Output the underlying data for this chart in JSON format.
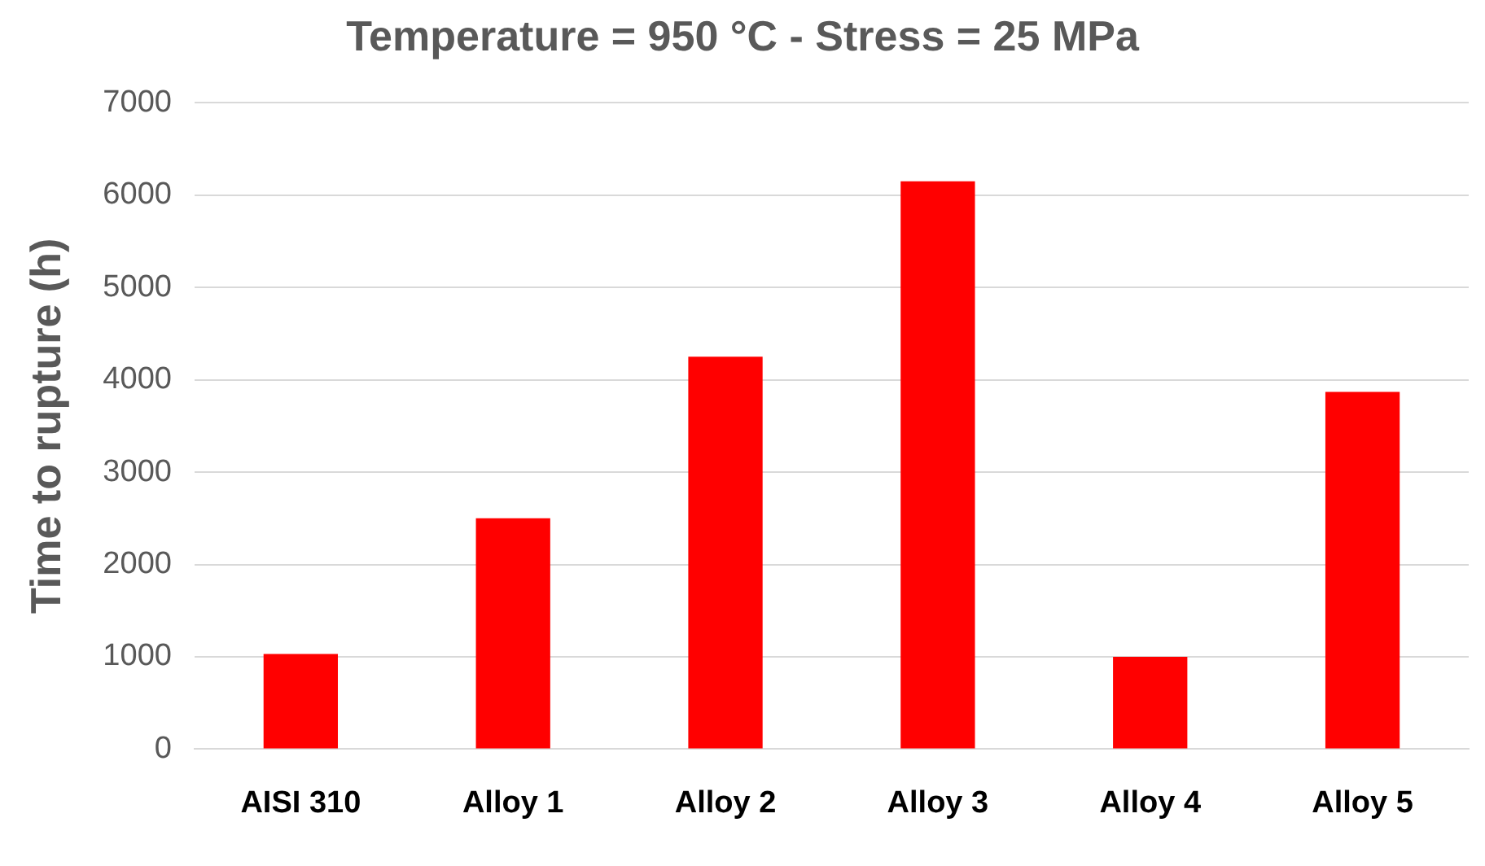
{
  "chart_data": {
    "type": "bar",
    "title": "Temperature = 950 °C - Stress = 25 MPa",
    "ylabel": "Time to rupture (h)",
    "categories": [
      "AISI 310",
      "Alloy 1",
      "Alloy 2",
      "Alloy 3",
      "Alloy 4",
      "Alloy 5"
    ],
    "values": [
      1030,
      2500,
      4250,
      6150,
      1000,
      3870
    ],
    "color": "#ff0000",
    "ylim": [
      0,
      7000
    ],
    "yticks": [
      0,
      1000,
      2000,
      3000,
      4000,
      5000,
      6000,
      7000
    ],
    "grid": "y",
    "legend": false
  }
}
